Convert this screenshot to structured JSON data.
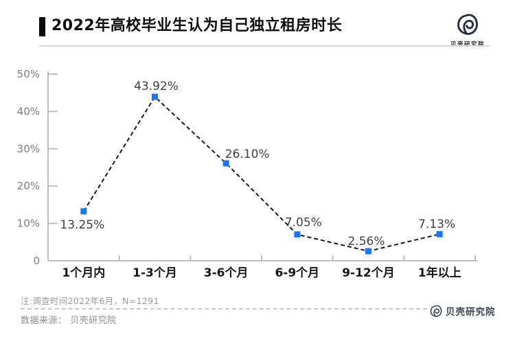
{
  "header": {
    "title": "2022年高校毕业生认为自己独立租房时长",
    "brand": "贝壳研究院"
  },
  "icons": {
    "brand": "beike-shell-logo"
  },
  "chart_data": {
    "type": "line",
    "title": "2022年高校毕业生认为自己独立租房时长",
    "categories": [
      "1个月内",
      "1-3个月",
      "3-6个月",
      "6-9个月",
      "9-12个月",
      "1年以上"
    ],
    "values": [
      13.25,
      43.92,
      26.1,
      7.05,
      2.56,
      7.13
    ],
    "point_labels": [
      "13.25%",
      "43.92%",
      "26.10%",
      "7.05%",
      "2.56%",
      "7.13%"
    ],
    "xlabel": "",
    "ylabel": "",
    "ylim": [
      0,
      50
    ],
    "yticks": [
      0,
      10,
      20,
      30,
      40,
      50
    ],
    "ytick_labels": [
      "0",
      "10%",
      "20%",
      "30%",
      "40%",
      "50%"
    ],
    "grid": false,
    "legend": "none",
    "line_style": "dashed",
    "line_color": "#161616",
    "marker": "square",
    "marker_color": "#1778f2",
    "axis_color": "#bdbdbd",
    "tick_label_color": "#7d7d7d",
    "x_label_color": "#161616",
    "point_label_color": "#3f3f3f"
  },
  "footer": {
    "note": "注:调查时间2022年6月，N=1291",
    "source": "数据来源： 贝壳研究院",
    "brand": "贝壳研究院"
  }
}
